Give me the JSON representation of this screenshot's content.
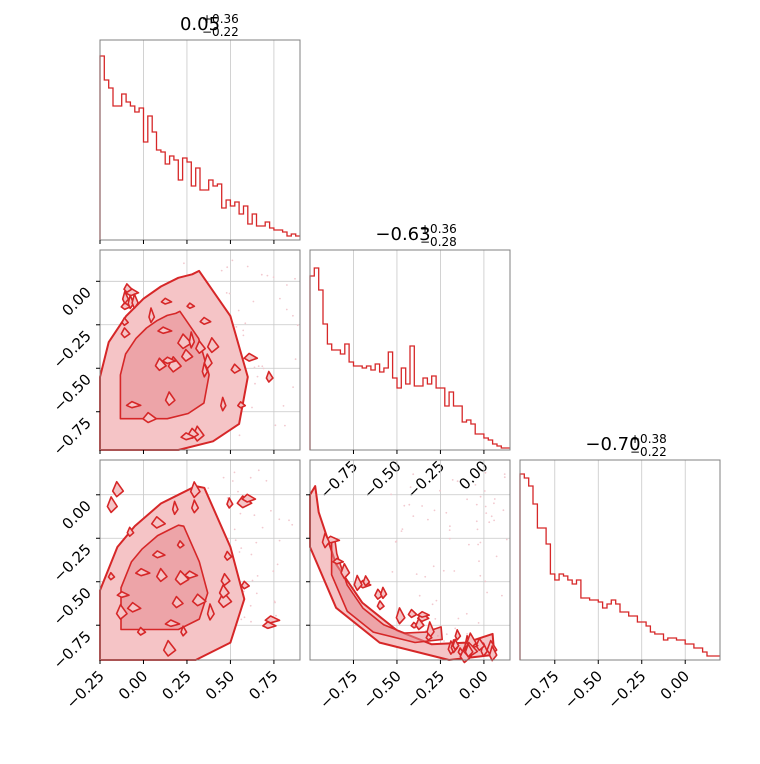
{
  "figure": {
    "type": "corner-plot"
  },
  "colors": {
    "accent": "#d62728",
    "fill_outer": "#f5c4c6",
    "fill_inner": "#e58a90",
    "scatter": "#f2c9cf",
    "grid": "#c8c8c8",
    "axes": "#808080"
  },
  "titles": {
    "p0": {
      "main": "0.05",
      "plus": "+0.36",
      "minus": "−0.22"
    },
    "p1": {
      "main": "−0.63",
      "plus": "+0.36",
      "minus": "−0.28"
    },
    "p2": {
      "main": "−0.70",
      "plus": "+0.38",
      "minus": "−0.22"
    }
  },
  "chart_data": [
    {
      "type": "histogram",
      "panel": "hist-0",
      "title": "0.05 +0.36 −0.22",
      "xlim": [
        -0.25,
        0.9
      ],
      "grid": true,
      "x": [
        -0.25,
        -0.225,
        -0.2,
        -0.175,
        -0.15,
        -0.125,
        -0.1,
        -0.075,
        -0.05,
        -0.025,
        0.0,
        0.025,
        0.05,
        0.075,
        0.1,
        0.125,
        0.15,
        0.175,
        0.2,
        0.225,
        0.25,
        0.275,
        0.3,
        0.325,
        0.35,
        0.375,
        0.4,
        0.425,
        0.45,
        0.475,
        0.5,
        0.525,
        0.55,
        0.575,
        0.6,
        0.625,
        0.65,
        0.675,
        0.7,
        0.725,
        0.75,
        0.775,
        0.8,
        0.825,
        0.85,
        0.875
      ],
      "values": [
        0.92,
        0.8,
        0.76,
        0.67,
        0.67,
        0.73,
        0.69,
        0.67,
        0.64,
        0.66,
        0.49,
        0.62,
        0.54,
        0.45,
        0.44,
        0.38,
        0.42,
        0.4,
        0.3,
        0.41,
        0.39,
        0.27,
        0.36,
        0.25,
        0.25,
        0.3,
        0.27,
        0.28,
        0.16,
        0.2,
        0.17,
        0.19,
        0.13,
        0.17,
        0.08,
        0.13,
        0.07,
        0.07,
        0.09,
        0.06,
        0.05,
        0.05,
        0.04,
        0.02,
        0.03,
        0.02
      ],
      "ylim": [
        0,
        1
      ]
    },
    {
      "type": "histogram",
      "panel": "hist-1",
      "title": "−0.63 +0.36 −0.28",
      "xlim": [
        -1.0,
        0.15
      ],
      "xticks": [
        -0.75,
        -0.5,
        -0.25,
        0.0
      ],
      "xtick_labels": [
        "−0.75",
        "−0.50",
        "−0.25",
        "0.00"
      ],
      "grid": true,
      "x": [
        -1.0,
        -0.975,
        -0.95,
        -0.925,
        -0.9,
        -0.875,
        -0.85,
        -0.825,
        -0.8,
        -0.775,
        -0.75,
        -0.725,
        -0.7,
        -0.675,
        -0.65,
        -0.625,
        -0.6,
        -0.575,
        -0.55,
        -0.525,
        -0.5,
        -0.475,
        -0.45,
        -0.425,
        -0.4,
        -0.375,
        -0.35,
        -0.325,
        -0.3,
        -0.275,
        -0.25,
        -0.225,
        -0.2,
        -0.175,
        -0.15,
        -0.125,
        -0.1,
        -0.075,
        -0.05,
        -0.025,
        0.0,
        0.025,
        0.05,
        0.075,
        0.1,
        0.125
      ],
      "values": [
        0.87,
        0.91,
        0.8,
        0.63,
        0.53,
        0.5,
        0.5,
        0.48,
        0.53,
        0.44,
        0.42,
        0.42,
        0.41,
        0.42,
        0.4,
        0.43,
        0.39,
        0.41,
        0.49,
        0.36,
        0.31,
        0.41,
        0.33,
        0.52,
        0.32,
        0.32,
        0.36,
        0.33,
        0.37,
        0.31,
        0.31,
        0.22,
        0.29,
        0.22,
        0.22,
        0.14,
        0.15,
        0.13,
        0.08,
        0.08,
        0.06,
        0.05,
        0.03,
        0.02,
        0.01,
        0.01
      ],
      "ylim": [
        0,
        1
      ]
    },
    {
      "type": "histogram",
      "panel": "hist-2",
      "title": "−0.70 +0.38 −0.22",
      "xlim": [
        -0.95,
        0.2
      ],
      "xticks": [
        -0.75,
        -0.5,
        -0.25,
        0.0
      ],
      "xtick_labels": [
        "−0.75",
        "−0.50",
        "−0.25",
        "0.00"
      ],
      "grid": true,
      "x": [
        -0.95,
        -0.925,
        -0.9,
        -0.875,
        -0.85,
        -0.825,
        -0.8,
        -0.775,
        -0.75,
        -0.725,
        -0.7,
        -0.675,
        -0.65,
        -0.625,
        -0.6,
        -0.575,
        -0.55,
        -0.525,
        -0.5,
        -0.475,
        -0.45,
        -0.425,
        -0.4,
        -0.375,
        -0.35,
        -0.325,
        -0.3,
        -0.275,
        -0.25,
        -0.225,
        -0.2,
        -0.175,
        -0.15,
        -0.125,
        -0.1,
        -0.075,
        -0.05,
        -0.025,
        0.0,
        0.025,
        0.05,
        0.075,
        0.1,
        0.125,
        0.15,
        0.175
      ],
      "values": [
        0.93,
        0.91,
        0.87,
        0.78,
        0.66,
        0.66,
        0.58,
        0.43,
        0.4,
        0.43,
        0.42,
        0.4,
        0.38,
        0.4,
        0.31,
        0.31,
        0.3,
        0.3,
        0.29,
        0.26,
        0.28,
        0.3,
        0.28,
        0.24,
        0.24,
        0.22,
        0.22,
        0.19,
        0.19,
        0.17,
        0.14,
        0.13,
        0.13,
        0.1,
        0.11,
        0.11,
        0.1,
        0.1,
        0.08,
        0.08,
        0.06,
        0.06,
        0.04,
        0.02,
        0.02,
        0.02
      ],
      "ylim": [
        0,
        1
      ]
    },
    {
      "type": "contour",
      "panel": "joint-1-0",
      "xlim": [
        -0.25,
        0.9
      ],
      "ylim": [
        -0.97,
        0.18
      ],
      "yticks": [
        0.0,
        -0.25,
        -0.5,
        -0.75
      ],
      "ytick_labels": [
        "0.00",
        "−0.25",
        "−0.50",
        "−0.75"
      ],
      "grid": true,
      "outer_contour": [
        [
          -0.25,
          -0.55
        ],
        [
          -0.2,
          -0.35
        ],
        [
          -0.1,
          -0.2
        ],
        [
          0.0,
          -0.1
        ],
        [
          0.1,
          -0.03
        ],
        [
          0.2,
          0.02
        ],
        [
          0.28,
          0.04
        ],
        [
          0.32,
          0.06
        ],
        [
          0.5,
          -0.2
        ],
        [
          0.6,
          -0.55
        ],
        [
          0.55,
          -0.82
        ],
        [
          0.4,
          -0.92
        ],
        [
          0.2,
          -0.97
        ],
        [
          -0.25,
          -0.97
        ]
      ]
    },
    {
      "type": "contour",
      "panel": "joint-2-0",
      "xlim": [
        -0.25,
        0.9
      ],
      "ylim": [
        -0.95,
        0.2
      ],
      "xticks": [
        -0.25,
        0.0,
        0.25,
        0.5,
        0.75
      ],
      "xtick_labels": [
        "−0.25",
        "0.00",
        "0.25",
        "0.50",
        "0.75"
      ],
      "yticks": [
        0.0,
        -0.25,
        -0.5,
        -0.75
      ],
      "ytick_labels": [
        "0.00",
        "−0.25",
        "−0.50",
        "−0.75"
      ],
      "grid": true,
      "outer_contour": [
        [
          -0.25,
          -0.55
        ],
        [
          -0.15,
          -0.3
        ],
        [
          -0.05,
          -0.18
        ],
        [
          0.1,
          -0.05
        ],
        [
          0.2,
          0.0
        ],
        [
          0.3,
          0.05
        ],
        [
          0.35,
          0.04
        ],
        [
          0.5,
          -0.3
        ],
        [
          0.58,
          -0.6
        ],
        [
          0.5,
          -0.85
        ],
        [
          0.3,
          -0.95
        ],
        [
          -0.25,
          -0.95
        ]
      ]
    },
    {
      "type": "contour",
      "panel": "joint-2-1",
      "xlim": [
        -1.0,
        0.15
      ],
      "ylim": [
        -0.95,
        0.2
      ],
      "xticks": [
        -0.75,
        -0.5,
        -0.25,
        0.0
      ],
      "xtick_labels": [
        "−0.75",
        "−0.50",
        "−0.25",
        "0.00"
      ],
      "grid": true,
      "outer_contour": [
        [
          -1.0,
          0.0
        ],
        [
          -0.97,
          0.05
        ],
        [
          -0.95,
          -0.1
        ],
        [
          -0.85,
          -0.4
        ],
        [
          -0.7,
          -0.62
        ],
        [
          -0.5,
          -0.78
        ],
        [
          -0.3,
          -0.86
        ],
        [
          -0.1,
          -0.85
        ],
        [
          0.05,
          -0.8
        ],
        [
          0.06,
          -0.92
        ],
        [
          -0.2,
          -0.95
        ],
        [
          -0.6,
          -0.85
        ],
        [
          -0.85,
          -0.65
        ],
        [
          -1.0,
          -0.3
        ]
      ]
    }
  ]
}
